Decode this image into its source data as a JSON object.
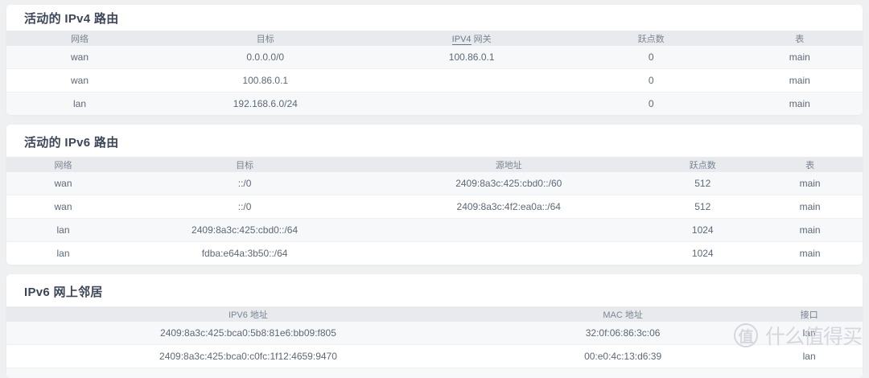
{
  "sections": [
    {
      "title": "活动的 IPv4 路由",
      "columns": [
        "网络",
        "目标",
        "IPV4 网关",
        "跃点数",
        "表"
      ],
      "abbr_prefix": {
        "2": "IPV4"
      },
      "rows": [
        [
          "wan",
          "0.0.0.0/0",
          "100.86.0.1",
          "0",
          "main"
        ],
        [
          "wan",
          "100.86.0.1",
          "",
          "0",
          "main"
        ],
        [
          "lan",
          "192.168.6.0/24",
          "",
          "0",
          "main"
        ]
      ]
    },
    {
      "title": "活动的 IPv6 路由",
      "columns": [
        "网络",
        "目标",
        "源地址",
        "跃点数",
        "表"
      ],
      "rows": [
        [
          "wan",
          "::/0",
          "2409:8a3c:425:cbd0::/60",
          "512",
          "main"
        ],
        [
          "wan",
          "::/0",
          "2409:8a3c:4f2:ea0a::/64",
          "512",
          "main"
        ],
        [
          "lan",
          "2409:8a3c:425:cbd0::/64",
          "",
          "1024",
          "main"
        ],
        [
          "lan",
          "fdba:e64a:3b50::/64",
          "",
          "1024",
          "main"
        ]
      ]
    },
    {
      "title": "IPv6 网上邻居",
      "columns": [
        "IPV6 地址",
        "MAC 地址",
        "接口"
      ],
      "rows": [
        [
          "2409:8a3c:425:bca0:5b8:81e6:bb09:f805",
          "32:0f:06:86:3c:06",
          "lan"
        ],
        [
          "2409:8a3c:425:bca0:c0fc:1f12:4659:9470",
          "00:e0:4c:13:d6:39",
          "lan"
        ]
      ]
    }
  ],
  "watermark": {
    "badge": "值",
    "text": "什么值得买"
  },
  "colors": {
    "page_background": "#eef0f1",
    "panel_background": "#ffffff",
    "header_row_background": "#e8eaed",
    "alt_row_background": "#f7f8fa",
    "title_text": "#3c4657",
    "cell_text": "#5d6877"
  }
}
